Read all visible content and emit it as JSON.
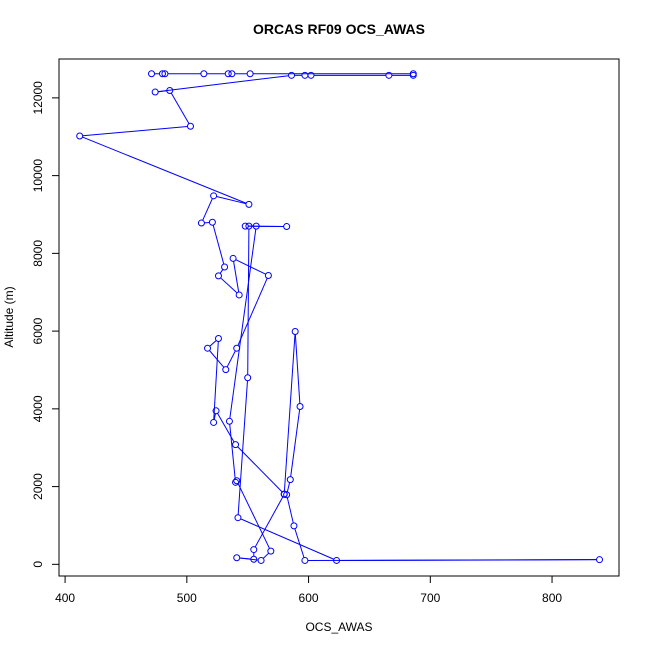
{
  "chart_data": {
    "type": "line",
    "title": "ORCAS RF09 OCS_AWAS",
    "xlabel": "OCS_AWAS",
    "ylabel": "Altitude (m)",
    "xlim": [
      395,
      855
    ],
    "ylim": [
      -300,
      13000
    ],
    "xticks": [
      400,
      500,
      600,
      700,
      800
    ],
    "yticks": [
      0,
      2000,
      4000,
      6000,
      8000,
      10000,
      12000
    ],
    "grid": false,
    "marker": "open-circle",
    "color": "#0000ff",
    "series": [
      {
        "points": [
          [
            471,
            12620
          ],
          [
            480,
            12620
          ],
          [
            482,
            12620
          ],
          [
            514,
            12620
          ],
          [
            534,
            12620
          ],
          [
            537,
            12620
          ],
          [
            552,
            12620
          ],
          [
            686,
            12620
          ],
          [
            686,
            12580
          ],
          [
            666,
            12580
          ],
          [
            602,
            12580
          ],
          [
            597,
            12580
          ],
          [
            586,
            12580
          ],
          [
            474,
            12150
          ],
          [
            486,
            12190
          ],
          [
            503,
            11270
          ],
          [
            412,
            11020
          ],
          [
            551,
            9260
          ],
          [
            522,
            9480
          ],
          [
            512,
            8780
          ],
          [
            521,
            8800
          ],
          [
            531,
            7650
          ],
          [
            526,
            7420
          ],
          [
            543,
            6930
          ],
          [
            538,
            7870
          ],
          [
            567,
            7430
          ],
          [
            541,
            5560
          ],
          [
            532,
            5010
          ],
          [
            517,
            5560
          ],
          [
            526,
            5810
          ],
          [
            522,
            3650
          ],
          [
            524,
            3950
          ],
          [
            540,
            3080
          ],
          [
            580,
            1810
          ],
          [
            589,
            5990
          ],
          [
            593,
            4060
          ],
          [
            585,
            2180
          ],
          [
            582,
            1790
          ],
          [
            588,
            990
          ],
          [
            597,
            100
          ],
          [
            839,
            120
          ],
          [
            623,
            100
          ],
          [
            542,
            1200
          ],
          [
            550,
            4800
          ],
          [
            551,
            8700
          ],
          [
            582,
            8690
          ],
          [
            548,
            8700
          ],
          [
            557,
            8700
          ],
          [
            535,
            3680
          ],
          [
            540,
            2110
          ],
          [
            541,
            2150
          ],
          [
            569,
            340
          ],
          [
            561,
            100
          ],
          [
            541,
            170
          ],
          [
            555,
            130
          ],
          [
            555,
            380
          ],
          [
            580,
            1800
          ]
        ]
      }
    ]
  }
}
